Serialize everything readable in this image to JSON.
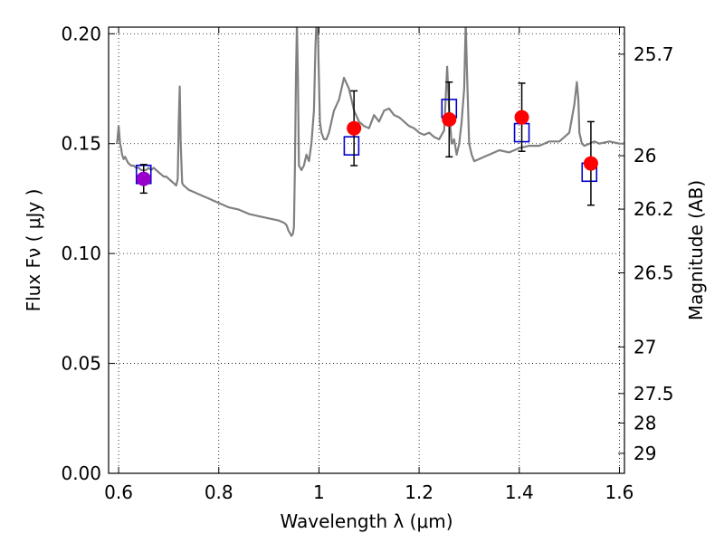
{
  "chart_data": {
    "type": "line",
    "xlabel": "Wavelength  λ (μm)",
    "ylabel": "Flux  Fν  ( μJy )",
    "y2label": "Magnitude (AB)",
    "xlim": [
      0.58,
      1.61
    ],
    "ylim": [
      0.0,
      0.203
    ],
    "grid": true,
    "x_ticks": [
      {
        "value": 0.6,
        "label": "0.6"
      },
      {
        "value": 0.8,
        "label": "0.8"
      },
      {
        "value": 1.0,
        "label": "1"
      },
      {
        "value": 1.2,
        "label": "1.2"
      },
      {
        "value": 1.4,
        "label": "1.4"
      },
      {
        "value": 1.6,
        "label": "1.6"
      }
    ],
    "y_ticks": [
      {
        "value": 0.0,
        "label": "0.00"
      },
      {
        "value": 0.05,
        "label": "0.05"
      },
      {
        "value": 0.1,
        "label": "0.10"
      },
      {
        "value": 0.15,
        "label": "0.15"
      },
      {
        "value": 0.2,
        "label": "0.20"
      }
    ],
    "y2_ticks": [
      {
        "label": "25.7",
        "flux": 0.1907
      },
      {
        "label": "26",
        "flux": 0.1445
      },
      {
        "label": "26.2",
        "flux": 0.1202
      },
      {
        "label": "26.5",
        "flux": 0.0912
      },
      {
        "label": "27",
        "flux": 0.0575
      },
      {
        "label": "27.5",
        "flux": 0.0363
      },
      {
        "label": "28",
        "flux": 0.0229
      },
      {
        "label": "29",
        "flux": 0.0091
      }
    ],
    "series": [
      {
        "style": "line",
        "color": "#808080",
        "x": [
          0.597,
          0.6,
          0.603,
          0.605,
          0.607,
          0.61,
          0.613,
          0.617,
          0.62,
          0.625,
          0.63,
          0.635,
          0.64,
          0.645,
          0.65,
          0.655,
          0.66,
          0.665,
          0.67,
          0.675,
          0.68,
          0.685,
          0.69,
          0.695,
          0.7,
          0.705,
          0.71,
          0.715,
          0.718,
          0.72,
          0.722,
          0.724,
          0.727,
          0.73,
          0.74,
          0.75,
          0.76,
          0.77,
          0.78,
          0.79,
          0.8,
          0.82,
          0.84,
          0.86,
          0.88,
          0.9,
          0.92,
          0.93,
          0.935,
          0.94,
          0.943,
          0.945,
          0.948,
          0.95,
          0.952,
          0.954,
          0.956,
          0.958,
          0.96,
          0.965,
          0.97,
          0.975,
          0.98,
          0.985,
          0.99,
          0.993,
          0.996,
          0.998,
          1.0,
          1.002,
          1.005,
          1.01,
          1.015,
          1.02,
          1.03,
          1.04,
          1.05,
          1.06,
          1.07,
          1.08,
          1.09,
          1.1,
          1.11,
          1.12,
          1.13,
          1.14,
          1.15,
          1.16,
          1.17,
          1.18,
          1.19,
          1.2,
          1.21,
          1.22,
          1.23,
          1.24,
          1.25,
          1.253,
          1.256,
          1.26,
          1.265,
          1.27,
          1.275,
          1.28,
          1.285,
          1.29,
          1.293,
          1.296,
          1.3,
          1.305,
          1.31,
          1.32,
          1.33,
          1.34,
          1.36,
          1.38,
          1.4,
          1.42,
          1.44,
          1.46,
          1.48,
          1.5,
          1.51,
          1.515,
          1.518,
          1.52,
          1.525,
          1.53,
          1.54,
          1.55,
          1.56,
          1.58,
          1.6,
          1.61
        ],
        "y": [
          0.15,
          0.158,
          0.15,
          0.148,
          0.145,
          0.143,
          0.144,
          0.142,
          0.141,
          0.14,
          0.14,
          0.139,
          0.139,
          0.138,
          0.138,
          0.138,
          0.139,
          0.138,
          0.139,
          0.138,
          0.137,
          0.136,
          0.135,
          0.135,
          0.134,
          0.133,
          0.132,
          0.131,
          0.134,
          0.16,
          0.176,
          0.15,
          0.132,
          0.131,
          0.129,
          0.128,
          0.127,
          0.126,
          0.125,
          0.124,
          0.123,
          0.121,
          0.12,
          0.118,
          0.117,
          0.116,
          0.115,
          0.114,
          0.113,
          0.11,
          0.109,
          0.108,
          0.109,
          0.112,
          0.14,
          0.18,
          0.205,
          0.18,
          0.14,
          0.138,
          0.14,
          0.145,
          0.142,
          0.15,
          0.165,
          0.195,
          0.21,
          0.2,
          0.18,
          0.16,
          0.155,
          0.152,
          0.152,
          0.155,
          0.165,
          0.17,
          0.18,
          0.175,
          0.165,
          0.16,
          0.158,
          0.157,
          0.163,
          0.16,
          0.165,
          0.166,
          0.163,
          0.162,
          0.16,
          0.158,
          0.157,
          0.155,
          0.154,
          0.155,
          0.153,
          0.152,
          0.156,
          0.17,
          0.185,
          0.165,
          0.15,
          0.152,
          0.145,
          0.15,
          0.16,
          0.175,
          0.205,
          0.18,
          0.15,
          0.145,
          0.142,
          0.143,
          0.144,
          0.145,
          0.147,
          0.146,
          0.148,
          0.149,
          0.149,
          0.151,
          0.151,
          0.155,
          0.168,
          0.178,
          0.17,
          0.155,
          0.15,
          0.149,
          0.15,
          0.151,
          0.15,
          0.151,
          0.15,
          0.15
        ]
      },
      {
        "style": "open-square",
        "color": "#0000cc",
        "x": [
          0.65,
          1.065,
          1.26,
          1.405,
          1.54
        ],
        "y": [
          0.136,
          0.149,
          0.166,
          0.155,
          0.137
        ]
      },
      {
        "style": "filled-circle",
        "color": "#ff0000",
        "x": [
          0.65,
          1.07,
          1.26,
          1.405,
          1.543
        ],
        "y": [
          0.134,
          0.157,
          0.161,
          0.162,
          0.141
        ],
        "yerr": [
          0.0065,
          0.017,
          0.017,
          0.0155,
          0.019
        ],
        "point_colors": [
          "#9900cc",
          "#ff0000",
          "#ff0000",
          "#ff0000",
          "#ff0000"
        ]
      }
    ]
  }
}
